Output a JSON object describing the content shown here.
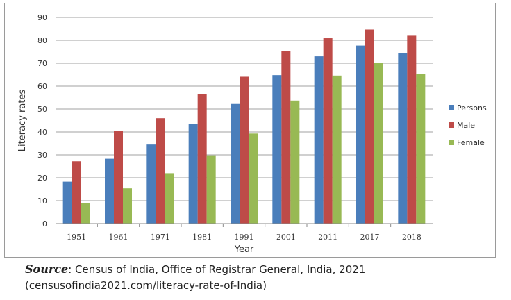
{
  "chart_data": {
    "type": "bar",
    "title": "",
    "xlabel": "Year",
    "ylabel": "Literacy rates",
    "ylim": [
      0,
      90
    ],
    "yticks": [
      0,
      10,
      20,
      30,
      40,
      50,
      60,
      70,
      80,
      90
    ],
    "grid": true,
    "legend_position": "right",
    "categories": [
      "1951",
      "1961",
      "1971",
      "1981",
      "1991",
      "2001",
      "2011",
      "2017",
      "2018"
    ],
    "series": [
      {
        "name": "Persons",
        "color": "#4a7ebb",
        "values": [
          18.3,
          28.3,
          34.5,
          43.6,
          52.2,
          64.8,
          73.0,
          77.7,
          74.4
        ]
      },
      {
        "name": "Male",
        "color": "#be4b48",
        "values": [
          27.2,
          40.4,
          46.0,
          56.4,
          64.1,
          75.3,
          80.9,
          84.7,
          82.0
        ]
      },
      {
        "name": "Female",
        "color": "#98b954",
        "values": [
          8.9,
          15.4,
          22.0,
          29.8,
          39.3,
          53.7,
          64.6,
          70.3,
          65.2
        ]
      }
    ]
  },
  "source": {
    "label": "Source",
    "text": ": Census of India, Office of Registrar General, India, 2021",
    "url_line": "(censusofindia2021.com/literacy-rate-of-India)"
  }
}
